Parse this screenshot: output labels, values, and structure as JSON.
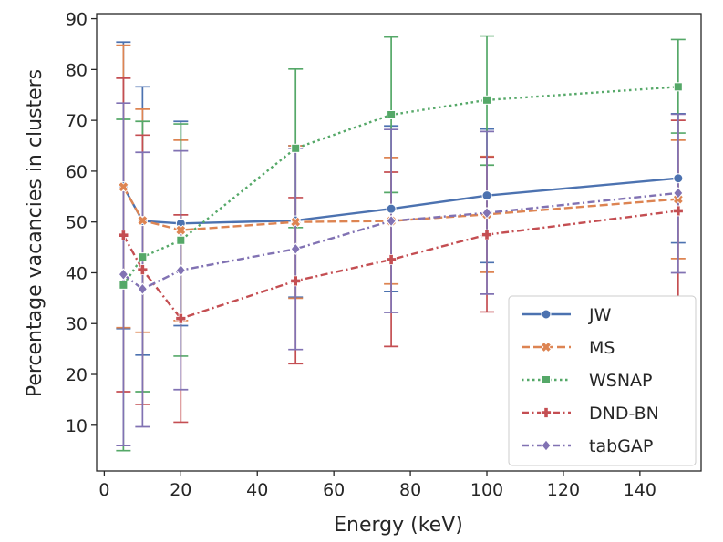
{
  "chart_data": {
    "type": "line",
    "title": "",
    "xlabel": "Energy (keV)",
    "ylabel": "Percentage vacancies in clusters",
    "xlim": [
      -2,
      156
    ],
    "ylim": [
      1,
      91
    ],
    "xticks": [
      0,
      20,
      40,
      60,
      80,
      100,
      120,
      140
    ],
    "yticks": [
      10,
      20,
      30,
      40,
      50,
      60,
      70,
      80,
      90
    ],
    "grid": false,
    "legend_position": "lower-right",
    "series": [
      {
        "name": "JW",
        "color": "#4c72b0",
        "marker": "circle",
        "dash": "solid",
        "x": [
          5,
          10,
          20,
          50,
          75,
          100,
          150
        ],
        "y": [
          57.0,
          50.2,
          49.7,
          50.3,
          52.6,
          55.2,
          58.6
        ],
        "err_low": [
          29.0,
          23.8,
          29.6,
          35.2,
          36.3,
          42.0,
          45.9
        ],
        "err_high": [
          85.4,
          76.6,
          69.8,
          65.0,
          68.9,
          68.3,
          71.3
        ]
      },
      {
        "name": "MS",
        "color": "#dd8452",
        "marker": "x",
        "dash": "dashed",
        "x": [
          5,
          10,
          20,
          50,
          75,
          100,
          150
        ],
        "y": [
          56.9,
          50.3,
          48.4,
          50.0,
          50.2,
          51.5,
          54.5
        ],
        "err_low": [
          29.2,
          28.3,
          30.6,
          35.0,
          37.8,
          40.1,
          42.8
        ],
        "err_high": [
          84.8,
          72.2,
          66.1,
          65.0,
          62.7,
          62.9,
          66.1
        ]
      },
      {
        "name": "WSNAP",
        "color": "#55a868",
        "marker": "square",
        "dash": "dotted",
        "x": [
          5,
          10,
          20,
          50,
          75,
          100,
          150
        ],
        "y": [
          37.6,
          43.1,
          46.4,
          64.5,
          71.1,
          74.0,
          76.6
        ],
        "err_low": [
          5.0,
          16.6,
          23.6,
          48.9,
          55.8,
          61.2,
          67.5
        ],
        "err_high": [
          70.2,
          69.8,
          69.3,
          80.1,
          86.4,
          86.6,
          85.9
        ]
      },
      {
        "name": "DND-BN",
        "color": "#c44e52",
        "marker": "plus",
        "dash": "dashdot",
        "x": [
          5,
          10,
          20,
          50,
          75,
          100,
          150
        ],
        "y": [
          47.4,
          40.6,
          31.0,
          38.4,
          42.6,
          47.5,
          52.2
        ],
        "err_low": [
          16.6,
          14.1,
          10.6,
          22.1,
          25.5,
          32.3,
          34.5
        ],
        "err_high": [
          78.3,
          67.1,
          51.4,
          54.8,
          59.8,
          62.8,
          70.0
        ]
      },
      {
        "name": "tabGAP",
        "color": "#8172b3",
        "marker": "diamond",
        "dash": "dashdot",
        "x": [
          5,
          10,
          20,
          50,
          75,
          100,
          150
        ],
        "y": [
          39.7,
          36.8,
          40.5,
          44.7,
          50.2,
          51.8,
          55.7
        ],
        "err_low": [
          6.0,
          9.7,
          17.0,
          24.9,
          32.2,
          35.8,
          40.0
        ],
        "err_high": [
          73.4,
          63.7,
          64.0,
          64.5,
          68.2,
          67.8,
          71.2
        ]
      }
    ]
  }
}
